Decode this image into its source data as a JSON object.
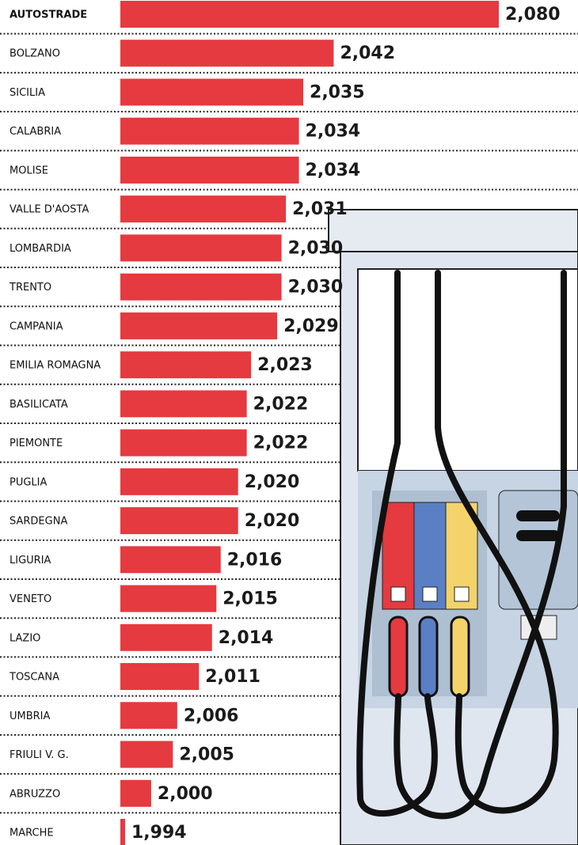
{
  "chart_data": {
    "type": "bar",
    "orientation": "horizontal",
    "color": "#e53a3f",
    "categories": [
      "AUTOSTRADE",
      "BOLZANO",
      "SICILIA",
      "CALABRIA",
      "MOLISE",
      "VALLE D'AOSTA",
      "LOMBARDIA",
      "TRENTO",
      "CAMPANIA",
      "EMILIA ROMAGNA",
      "BASILICATA",
      "PIEMONTE",
      "PUGLIA",
      "SARDEGNA",
      "LIGURIA",
      "VENETO",
      "LAZIO",
      "TOSCANA",
      "UMBRIA",
      "FRIULI V. G.",
      "ABRUZZO",
      "MARCHE"
    ],
    "values": [
      2.08,
      2.042,
      2.035,
      2.034,
      2.034,
      2.031,
      2.03,
      2.03,
      2.029,
      2.023,
      2.022,
      2.022,
      2.02,
      2.02,
      2.016,
      2.015,
      2.014,
      2.011,
      2.006,
      2.005,
      2.0,
      1.994
    ],
    "value_labels": [
      "2,080",
      "2,042",
      "2,035",
      "2,034",
      "2,034",
      "2,031",
      "2,030",
      "2,030",
      "2,029",
      "2,023",
      "2,022",
      "2,022",
      "2,020",
      "2,020",
      "2,016",
      "2,015",
      "2,014",
      "2,011",
      "2,006",
      "2,005",
      "2,000",
      "1,994"
    ]
  }
}
